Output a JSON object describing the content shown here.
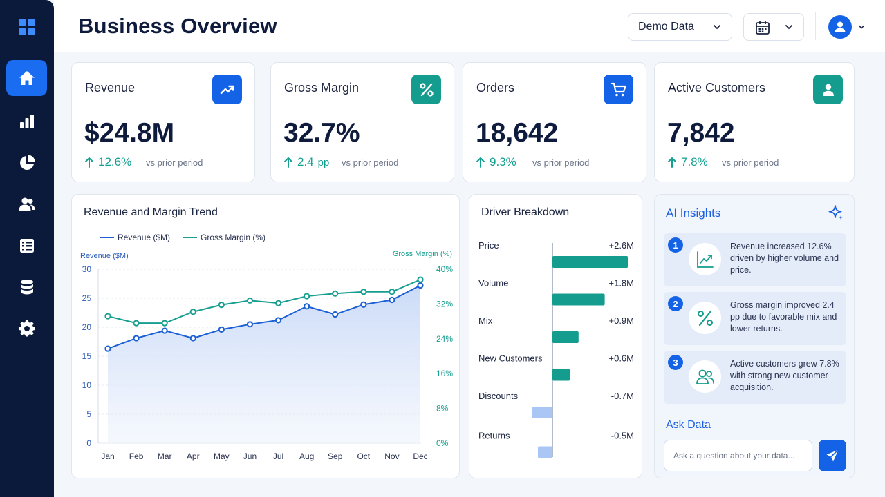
{
  "header": {
    "title": "Business Overview",
    "data_source_selected": "Demo Data"
  },
  "sidebar": {
    "items": [
      {
        "icon": "grid-icon",
        "label": "apps"
      },
      {
        "icon": "home-icon",
        "label": "home",
        "active": true
      },
      {
        "icon": "bar-chart-icon",
        "label": "reports"
      },
      {
        "icon": "pie-chart-icon",
        "label": "analytics"
      },
      {
        "icon": "users-icon",
        "label": "customers"
      },
      {
        "icon": "list-icon",
        "label": "tasks"
      },
      {
        "icon": "database-icon",
        "label": "data"
      },
      {
        "icon": "gear-icon",
        "label": "settings"
      }
    ]
  },
  "kpis": [
    {
      "title": "Revenue",
      "value": "$24.8M",
      "delta": "12.6%",
      "delta_unit": "",
      "vs": "vs prior period",
      "icon": "trend-up-icon",
      "icon_color": "#1463e6"
    },
    {
      "title": "Gross Margin",
      "value": "32.7%",
      "delta": "2.4",
      "delta_unit": "pp",
      "vs": "vs prior period",
      "icon": "percent-icon",
      "icon_color": "#149c8e"
    },
    {
      "title": "Orders",
      "value": "18,642",
      "delta": "9.3%",
      "delta_unit": "",
      "vs": "vs prior period",
      "icon": "cart-icon",
      "icon_color": "#1463e6"
    },
    {
      "title": "Active Customers",
      "value": "7,842",
      "delta": "7.8%",
      "delta_unit": "",
      "vs": "vs prior period",
      "icon": "user-icon",
      "icon_color": "#149c8e"
    }
  ],
  "trend_panel": {
    "title": "Revenue and Margin Trend"
  },
  "driver_panel": {
    "title": "Driver Breakdown"
  },
  "chart_data": [
    {
      "type": "line",
      "title": "Revenue and Margin Trend",
      "categories": [
        "Jan",
        "Feb",
        "Mar",
        "Apr",
        "May",
        "Jun",
        "Jul",
        "Aug",
        "Sep",
        "Oct",
        "Nov",
        "Dec"
      ],
      "series": [
        {
          "name": "Revenue ($M)",
          "axis": "left",
          "color": "#1a5fd6",
          "values": [
            16.3,
            18.1,
            19.4,
            18.1,
            19.6,
            20.5,
            21.2,
            23.6,
            22.2,
            23.9,
            24.7,
            27.2
          ]
        },
        {
          "name": "Gross Margin (%)",
          "axis": "right",
          "color": "#169e90",
          "values": [
            29.2,
            27.6,
            27.6,
            30.2,
            31.8,
            32.8,
            32.2,
            33.8,
            34.4,
            34.8,
            34.8,
            37.6
          ]
        }
      ],
      "y_left": {
        "label": "Revenue ($M)",
        "ticks": [
          "0",
          "5",
          "10",
          "15",
          "20",
          "25",
          "30"
        ],
        "range": [
          0,
          30
        ]
      },
      "y_right": {
        "label": "Gross Margin (%)",
        "ticks": [
          "0%",
          "8%",
          "16%",
          "24%",
          "32%",
          "40%"
        ],
        "range": [
          0,
          40
        ]
      },
      "legend_position": "top-left",
      "area_under_left_series": true,
      "grid": true
    },
    {
      "type": "bar",
      "orientation": "horizontal",
      "title": "Driver Breakdown",
      "categories": [
        "Price",
        "Volume",
        "Mix",
        "New Customers",
        "Discounts",
        "Returns"
      ],
      "values": [
        2.6,
        1.8,
        0.9,
        0.6,
        -0.7,
        -0.5
      ],
      "value_labels": [
        "+2.6M",
        "+1.8M",
        "+0.9M",
        "+0.6M",
        "-0.7M",
        "-0.5M"
      ],
      "positive_color": "#149c8e",
      "negative_color": "#a9c6f4"
    }
  ],
  "ai_insights": {
    "title": "AI Insights",
    "items": [
      {
        "num": "1",
        "icon": "trend-line-icon",
        "text": "Revenue increased 12.6% driven by higher volume and price."
      },
      {
        "num": "2",
        "icon": "percent-icon",
        "text": "Gross margin improved 2.4 pp due to favorable mix and lower returns."
      },
      {
        "num": "3",
        "icon": "users-icon",
        "text": "Active customers grew 7.8% with strong new customer acquisition."
      }
    ],
    "ask_title": "Ask Data",
    "ask_placeholder": "Ask a question about your data..."
  }
}
